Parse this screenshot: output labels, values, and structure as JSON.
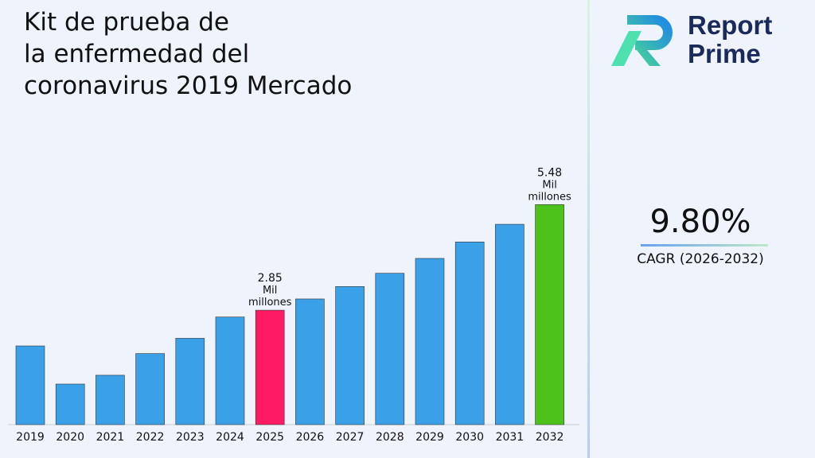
{
  "title": "Kit de prueba de\nla enfermedad del\ncoronavirus 2019 Mercado",
  "logo": {
    "text_line1": "Report",
    "text_line2": "Prime"
  },
  "cagr": {
    "value": "9.80%",
    "label": "CAGR (2026-2032)"
  },
  "colors": {
    "default": "#3aa0e8",
    "highlight_2025": "#ff1a66",
    "highlight_2032": "#4cc21a"
  },
  "chart_data": {
    "type": "bar",
    "categories": [
      "2019",
      "2020",
      "2021",
      "2022",
      "2023",
      "2024",
      "2025",
      "2026",
      "2027",
      "2028",
      "2029",
      "2030",
      "2031",
      "2032"
    ],
    "values": [
      1.96,
      1.01,
      1.23,
      1.77,
      2.15,
      2.68,
      2.85,
      3.13,
      3.44,
      3.77,
      4.14,
      4.55,
      4.99,
      5.48
    ],
    "data_labels": {
      "2025": "2.85\nMil\nmillones",
      "2032": "5.48\nMil\nmillones"
    },
    "ylim": [
      0,
      8.2
    ],
    "grid": false,
    "xlabel": "",
    "ylabel": ""
  }
}
